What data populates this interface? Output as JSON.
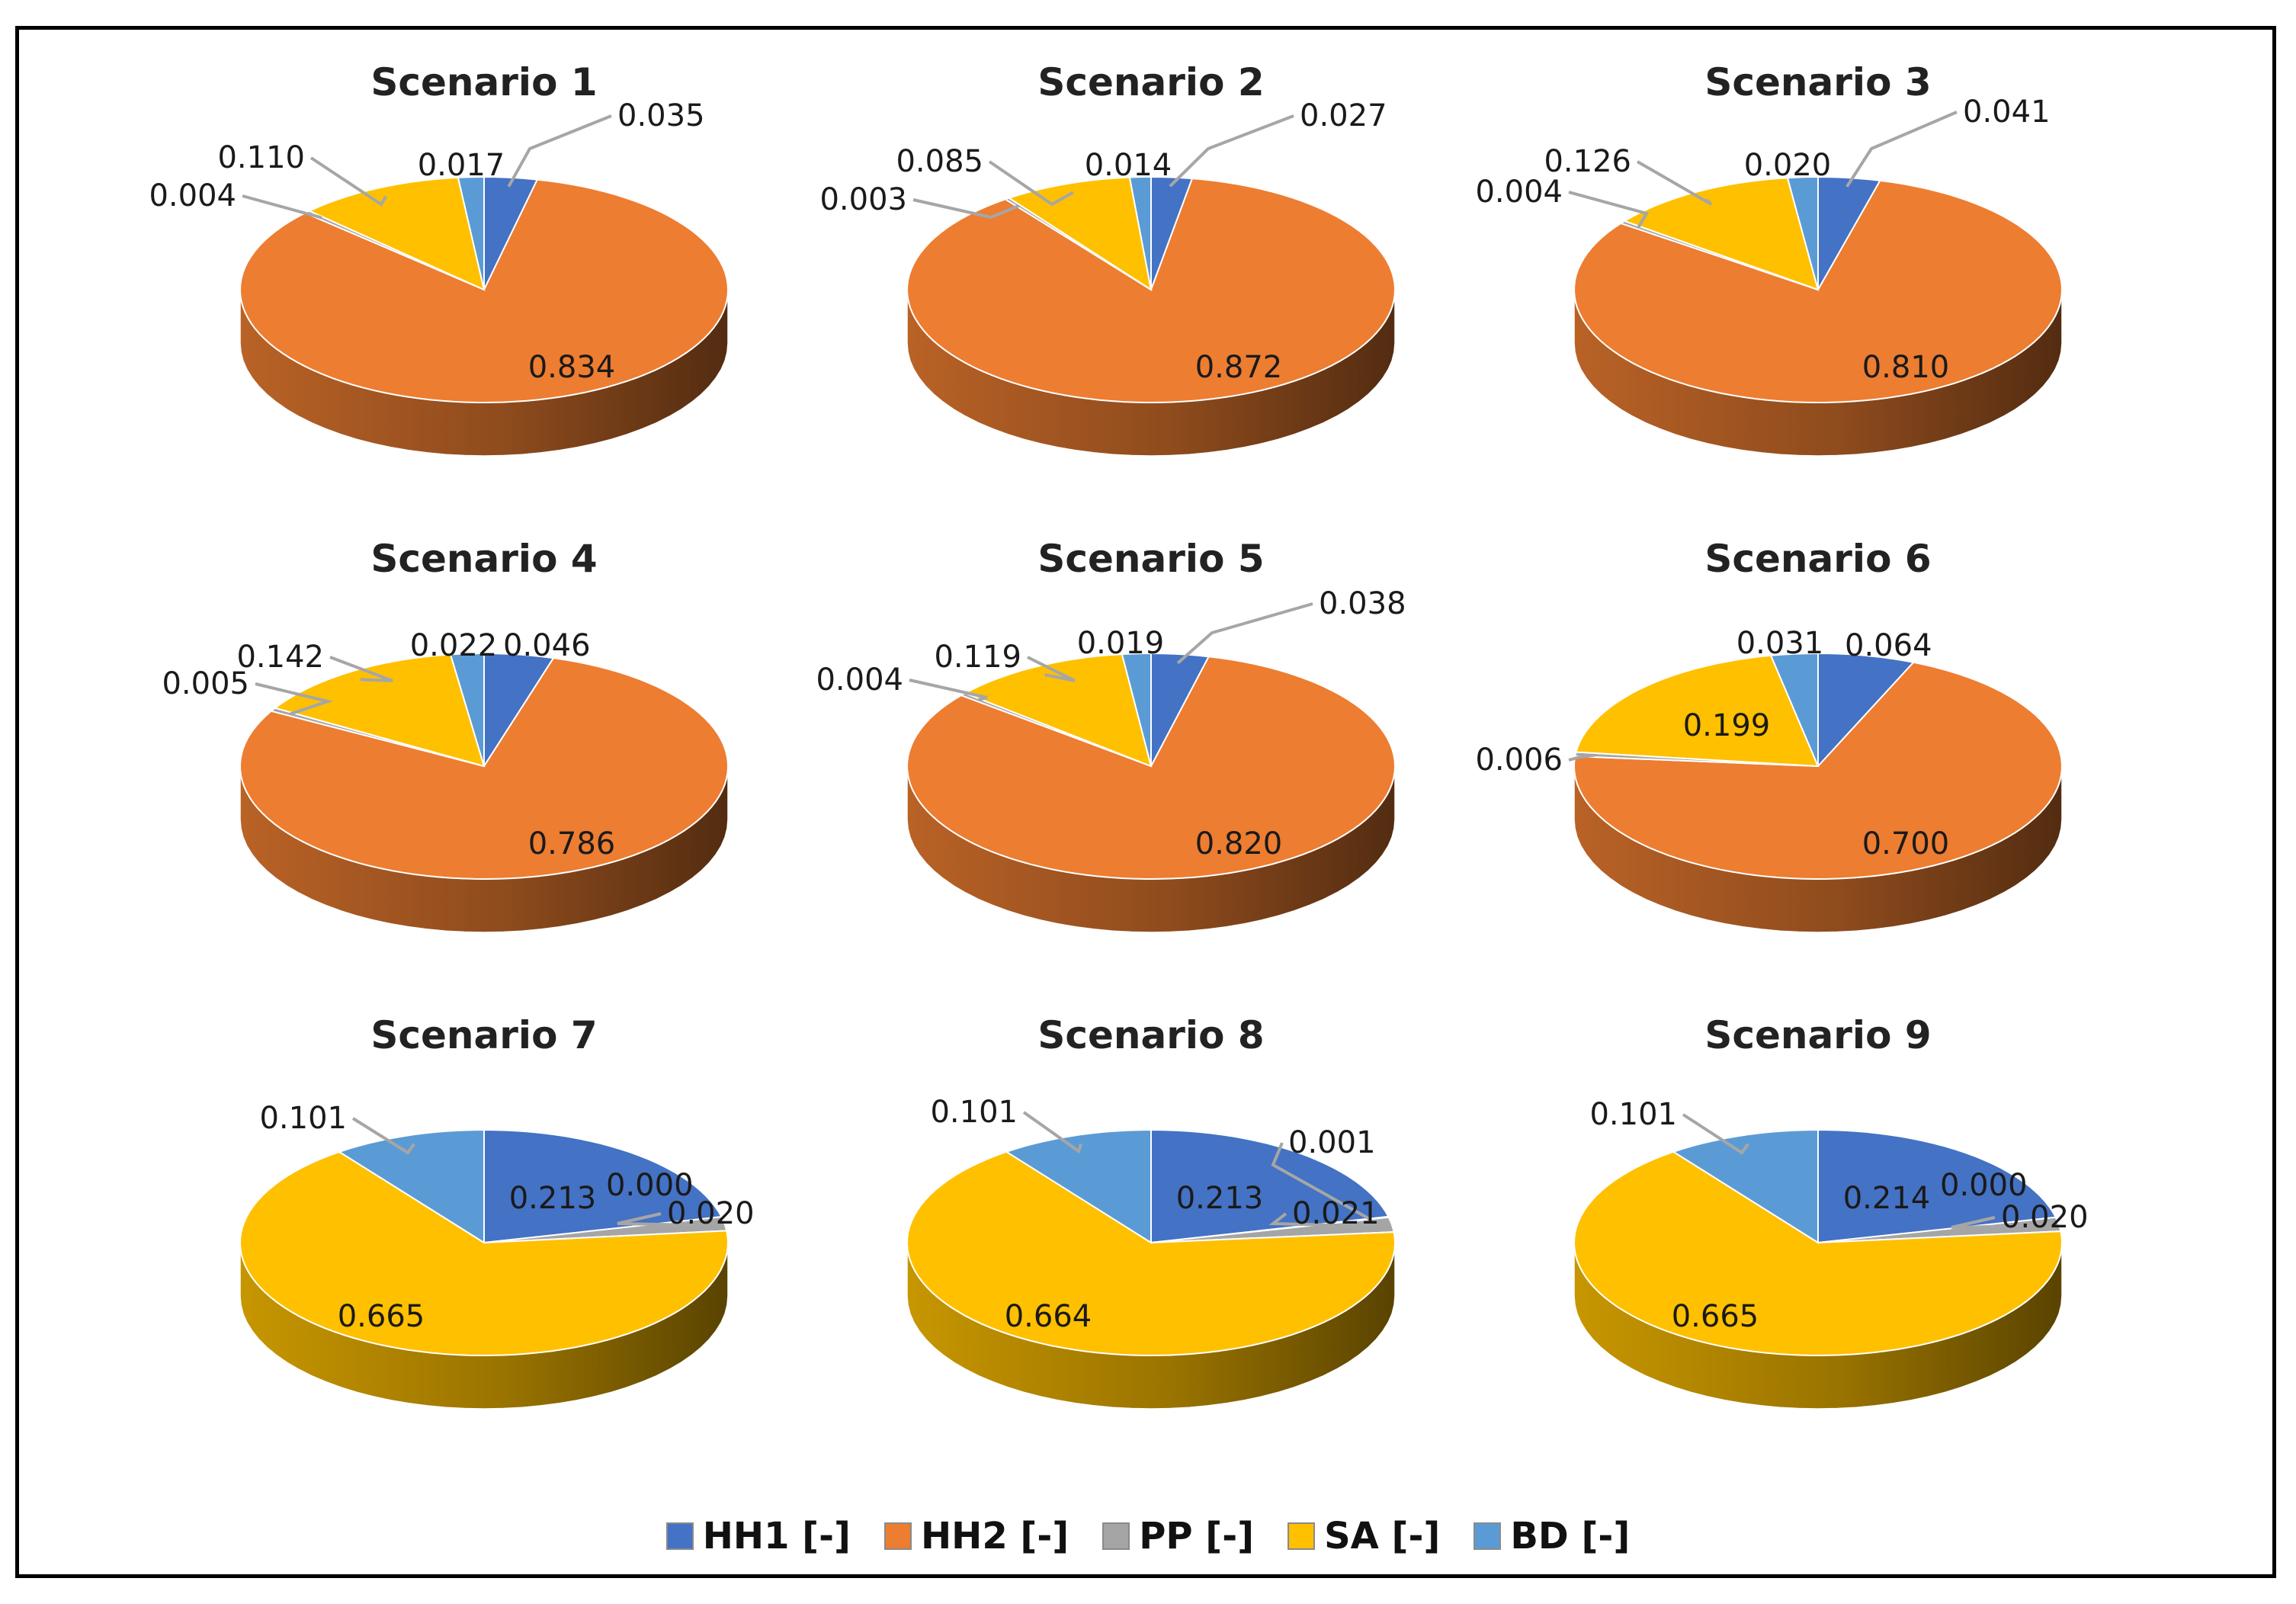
{
  "colors": {
    "HH1": "#4472c4",
    "HH2": "#ed7d31",
    "PP": "#a5a5a5",
    "SA": "#ffc000",
    "BD": "#5b9bd5"
  },
  "chart_data": [
    {
      "type": "pie",
      "title": "Scenario 1",
      "slices": [
        {
          "name": "HH1 [-]",
          "value": 0.035
        },
        {
          "name": "HH2 [-]",
          "value": 0.834
        },
        {
          "name": "PP [-]",
          "value": 0.004
        },
        {
          "name": "SA [-]",
          "value": 0.11
        },
        {
          "name": "BD [-]",
          "value": 0.017
        }
      ],
      "labels": [
        "0.035",
        "0.834",
        "0.004",
        "0.110",
        "0.017"
      ]
    },
    {
      "type": "pie",
      "title": "Scenario 2",
      "slices": [
        {
          "name": "HH1 [-]",
          "value": 0.027
        },
        {
          "name": "HH2 [-]",
          "value": 0.872
        },
        {
          "name": "PP [-]",
          "value": 0.003
        },
        {
          "name": "SA [-]",
          "value": 0.085
        },
        {
          "name": "BD [-]",
          "value": 0.014
        }
      ],
      "labels": [
        "0.027",
        "0.872",
        "0.003",
        "0.085",
        "0.014"
      ]
    },
    {
      "type": "pie",
      "title": "Scenario 3",
      "slices": [
        {
          "name": "HH1 [-]",
          "value": 0.041
        },
        {
          "name": "HH2 [-]",
          "value": 0.81
        },
        {
          "name": "PP [-]",
          "value": 0.004
        },
        {
          "name": "SA [-]",
          "value": 0.126
        },
        {
          "name": "BD [-]",
          "value": 0.02
        }
      ],
      "labels": [
        "0.041",
        "0.810",
        "0.004",
        "0.126",
        "0.020"
      ]
    },
    {
      "type": "pie",
      "title": "Scenario 4",
      "slices": [
        {
          "name": "HH1 [-]",
          "value": 0.046
        },
        {
          "name": "HH2 [-]",
          "value": 0.786
        },
        {
          "name": "PP [-]",
          "value": 0.005
        },
        {
          "name": "SA [-]",
          "value": 0.142
        },
        {
          "name": "BD [-]",
          "value": 0.022
        }
      ],
      "labels": [
        "0.046",
        "0.786",
        "0.005",
        "0.142",
        "0.022"
      ]
    },
    {
      "type": "pie",
      "title": "Scenario 5",
      "slices": [
        {
          "name": "HH1 [-]",
          "value": 0.038
        },
        {
          "name": "HH2 [-]",
          "value": 0.82
        },
        {
          "name": "PP [-]",
          "value": 0.004
        },
        {
          "name": "SA [-]",
          "value": 0.119
        },
        {
          "name": "BD [-]",
          "value": 0.019
        }
      ],
      "labels": [
        "0.038",
        "0.820",
        "0.004",
        "0.119",
        "0.019"
      ]
    },
    {
      "type": "pie",
      "title": "Scenario 6",
      "slices": [
        {
          "name": "HH1 [-]",
          "value": 0.064
        },
        {
          "name": "HH2 [-]",
          "value": 0.7
        },
        {
          "name": "PP [-]",
          "value": 0.006
        },
        {
          "name": "SA [-]",
          "value": 0.199
        },
        {
          "name": "BD [-]",
          "value": 0.031
        }
      ],
      "labels": [
        "0.064",
        "0.700",
        "0.006",
        "0.199",
        "0.031"
      ]
    },
    {
      "type": "pie",
      "title": "Scenario 7",
      "slices": [
        {
          "name": "HH1 [-]",
          "value": 0.213
        },
        {
          "name": "HH2 [-]",
          "value": 0.0
        },
        {
          "name": "PP [-]",
          "value": 0.02
        },
        {
          "name": "SA [-]",
          "value": 0.665
        },
        {
          "name": "BD [-]",
          "value": 0.101
        }
      ],
      "labels": [
        "0.213",
        "0.000",
        "0.020",
        "0.665",
        "0.101"
      ]
    },
    {
      "type": "pie",
      "title": "Scenario 8",
      "slices": [
        {
          "name": "HH1 [-]",
          "value": 0.213
        },
        {
          "name": "HH2 [-]",
          "value": 0.001
        },
        {
          "name": "PP [-]",
          "value": 0.021
        },
        {
          "name": "SA [-]",
          "value": 0.664
        },
        {
          "name": "BD [-]",
          "value": 0.101
        }
      ],
      "labels": [
        "0.213",
        "0.001",
        "0.021",
        "0.664",
        "0.101"
      ]
    },
    {
      "type": "pie",
      "title": "Scenario 9",
      "slices": [
        {
          "name": "HH1 [-]",
          "value": 0.214
        },
        {
          "name": "HH2 [-]",
          "value": 0.0
        },
        {
          "name": "PP [-]",
          "value": 0.02
        },
        {
          "name": "SA [-]",
          "value": 0.665
        },
        {
          "name": "BD [-]",
          "value": 0.101
        }
      ],
      "labels": [
        "0.214",
        "0.000",
        "0.020",
        "0.665",
        "0.101"
      ]
    }
  ],
  "legend": [
    {
      "key": "HH1",
      "label": "HH1 [-]"
    },
    {
      "key": "HH2",
      "label": "HH2 [-]"
    },
    {
      "key": "PP",
      "label": "PP [-]"
    },
    {
      "key": "SA",
      "label": "SA [-]"
    },
    {
      "key": "BD",
      "label": "BD [-]"
    }
  ]
}
